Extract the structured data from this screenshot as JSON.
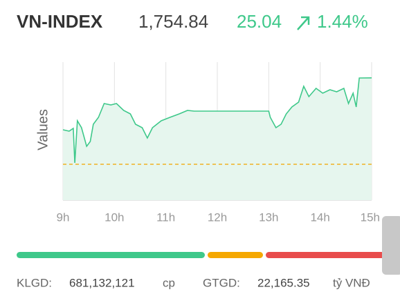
{
  "header": {
    "title": "VN-INDEX",
    "price": "1,754.84",
    "change": "25.04",
    "change_pct": "1.44%"
  },
  "chart_data": {
    "type": "line",
    "ylabel": "Values",
    "x": [
      9.0,
      9.12,
      9.2,
      9.23,
      9.28,
      9.36,
      9.46,
      9.53,
      9.59,
      9.69,
      9.8,
      9.93,
      10.04,
      10.18,
      10.31,
      10.41,
      10.54,
      10.64,
      10.74,
      10.91,
      11.08,
      11.26,
      11.42,
      11.55,
      13.0,
      13.03,
      13.14,
      13.24,
      13.34,
      13.45,
      13.58,
      13.68,
      13.78,
      13.92,
      14.05,
      14.19,
      14.32,
      14.46,
      14.55,
      14.64,
      14.7,
      14.76,
      15.0
    ],
    "values": [
      1739.8,
      1739.4,
      1740.2,
      1730.2,
      1742.4,
      1740.4,
      1735.0,
      1736.4,
      1741.4,
      1743.4,
      1747.4,
      1747.0,
      1747.4,
      1745.4,
      1744.4,
      1741.4,
      1740.4,
      1737.4,
      1740.4,
      1742.4,
      1743.4,
      1744.4,
      1745.4,
      1745.2,
      1745.2,
      1743.4,
      1740.4,
      1741.4,
      1744.4,
      1746.4,
      1747.8,
      1752.4,
      1749.4,
      1751.8,
      1750.4,
      1751.4,
      1750.8,
      1751.8,
      1747.4,
      1750.4,
      1746.4,
      1754.8,
      1754.84
    ],
    "color": "#3ec88a",
    "fill": "#e6f6ee",
    "reference": 1729.8,
    "reference_color": "#f0b020",
    "xlim": [
      9,
      15
    ],
    "ylim": [
      1719.4,
      1759.4
    ],
    "xticks": [
      {
        "value": 9,
        "label": "9h"
      },
      {
        "value": 10,
        "label": "10h"
      },
      {
        "value": 11,
        "label": "11h"
      },
      {
        "value": 12,
        "label": "12h"
      },
      {
        "value": 13,
        "label": "13h"
      },
      {
        "value": 14,
        "label": "14h"
      },
      {
        "value": 15,
        "label": "15h"
      }
    ],
    "grid": true
  },
  "breadth": {
    "values": [
      272,
      80,
      172
    ],
    "colors": [
      "#3ec88a",
      "#f5a800",
      "#e84c4c"
    ]
  },
  "footer": {
    "volume_label": "KLGD:",
    "volume": "681,132,121",
    "volume_unit": "cp",
    "value_label": "GTGD:",
    "value": "22,165.35",
    "value_unit": "tỷ VNĐ"
  }
}
